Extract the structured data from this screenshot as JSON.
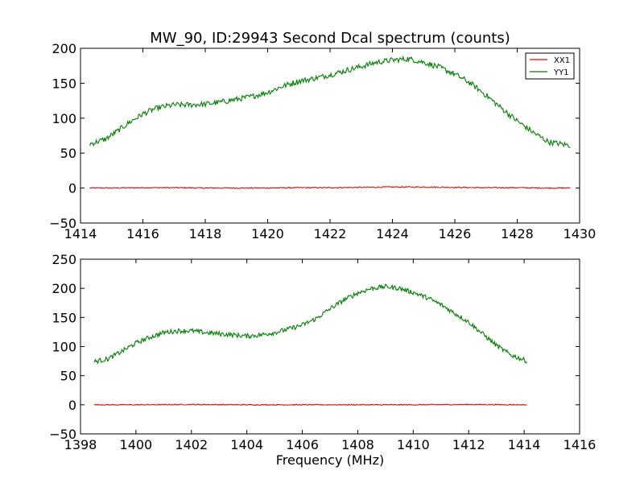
{
  "figure": {
    "title": "MW_90, ID:29943 Second Dcal spectrum (counts)",
    "xlabel": "Frequency (MHz)"
  },
  "chart_data": [
    {
      "type": "line",
      "title": "MW_90, ID:29943 Second Dcal spectrum (counts)",
      "xlabel": "",
      "ylabel": "",
      "xlim": [
        1414,
        1430
      ],
      "ylim": [
        -50,
        200
      ],
      "xticks": [
        1414,
        1416,
        1418,
        1420,
        1422,
        1424,
        1426,
        1428,
        1430
      ],
      "yticks": [
        -50,
        0,
        50,
        100,
        150,
        200
      ],
      "xtick_labels": [
        "1414",
        "1416",
        "1418",
        "1420",
        "1422",
        "1424",
        "1426",
        "1428",
        "1430"
      ],
      "ytick_labels": [
        "−50",
        "0",
        "50",
        "100",
        "150",
        "200"
      ],
      "legend": {
        "placement": "top-right",
        "entries": [
          "XX1",
          "YY1"
        ]
      },
      "grid": false,
      "series": [
        {
          "name": "XX1",
          "color": "#ff0000",
          "x": [
            1414.3,
            1415.0,
            1416.0,
            1417.0,
            1418.0,
            1419.0,
            1420.0,
            1421.0,
            1422.0,
            1423.0,
            1424.0,
            1425.0,
            1426.0,
            1427.0,
            1428.0,
            1429.0,
            1429.7
          ],
          "y": [
            0,
            0,
            0.5,
            0.5,
            0,
            0,
            0,
            0.5,
            0.5,
            1,
            1.5,
            1.5,
            1,
            0.5,
            0.5,
            0,
            0
          ]
        },
        {
          "name": "YY1",
          "color": "#008000",
          "x": [
            1414.3,
            1414.8,
            1415.2,
            1415.6,
            1416.0,
            1416.3,
            1416.6,
            1417.0,
            1417.5,
            1418.0,
            1418.5,
            1419.0,
            1419.5,
            1420.0,
            1420.5,
            1421.0,
            1421.5,
            1422.0,
            1422.5,
            1423.0,
            1423.5,
            1424.0,
            1424.5,
            1425.0,
            1425.5,
            1426.0,
            1426.5,
            1427.0,
            1427.5,
            1428.0,
            1428.5,
            1429.0,
            1429.7
          ],
          "y": [
            63,
            70,
            82,
            95,
            106,
            112,
            116,
            119,
            119,
            120,
            123,
            127,
            131,
            137,
            146,
            153,
            157,
            162,
            168,
            174,
            180,
            183,
            185,
            180,
            173,
            163,
            150,
            133,
            114,
            96,
            80,
            66,
            61
          ]
        }
      ]
    },
    {
      "type": "line",
      "title": "",
      "xlabel": "Frequency (MHz)",
      "ylabel": "",
      "xlim": [
        1398,
        1416
      ],
      "ylim": [
        -50,
        250
      ],
      "xticks": [
        1398,
        1400,
        1402,
        1404,
        1406,
        1408,
        1410,
        1412,
        1414,
        1416
      ],
      "yticks": [
        -50,
        0,
        50,
        100,
        150,
        200,
        250
      ],
      "xtick_labels": [
        "1398",
        "1400",
        "1402",
        "1404",
        "1406",
        "1408",
        "1410",
        "1412",
        "1414",
        "1416"
      ],
      "ytick_labels": [
        "−50",
        "0",
        "50",
        "100",
        "150",
        "200",
        "250"
      ],
      "grid": false,
      "series": [
        {
          "name": "XX1",
          "color": "#ff0000",
          "x": [
            1398.5,
            1400.0,
            1402.0,
            1404.0,
            1406.0,
            1408.0,
            1410.0,
            1412.0,
            1414.1
          ],
          "y": [
            0,
            0,
            0.5,
            0,
            0,
            0,
            0,
            0.5,
            0
          ]
        },
        {
          "name": "YY1",
          "color": "#008000",
          "x": [
            1398.5,
            1399.0,
            1399.5,
            1400.0,
            1400.5,
            1401.0,
            1401.5,
            1402.0,
            1402.5,
            1403.0,
            1403.5,
            1404.0,
            1404.5,
            1405.0,
            1405.5,
            1406.0,
            1406.5,
            1407.0,
            1407.5,
            1408.0,
            1408.5,
            1409.0,
            1409.5,
            1410.0,
            1410.5,
            1411.0,
            1411.5,
            1412.0,
            1412.5,
            1413.0,
            1413.5,
            1414.1
          ],
          "y": [
            74,
            79,
            92,
            106,
            116,
            124,
            127,
            127,
            124,
            122,
            120,
            118,
            120,
            124,
            130,
            137,
            148,
            165,
            180,
            192,
            200,
            203,
            200,
            193,
            184,
            172,
            157,
            142,
            122,
            102,
            86,
            75
          ]
        }
      ]
    }
  ]
}
